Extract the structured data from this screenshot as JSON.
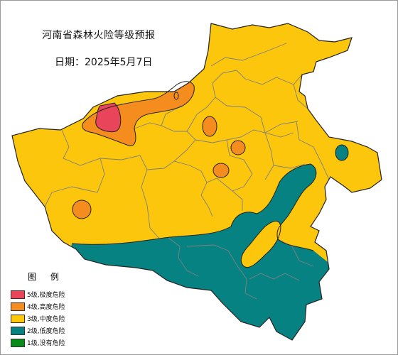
{
  "map": {
    "title": "河南省森林火险等级预报",
    "date_label": "日期：2025年5月7日"
  },
  "legend": {
    "title": "图 例",
    "items": [
      {
        "label": "5级,极度危险",
        "color": "#E8445A"
      },
      {
        "label": "4级,高度危险",
        "color": "#F58C1E"
      },
      {
        "label": "3级,中度危险",
        "color": "#FBC60C"
      },
      {
        "label": "2级,低度危险",
        "color": "#078282"
      },
      {
        "label": "1级,没有危险",
        "color": "#0B8A1C"
      }
    ]
  },
  "colors": {
    "level5": "#E8445A",
    "level4": "#F58C1E",
    "level3": "#FBC60C",
    "level2": "#078282",
    "boundary": "#7f7f7f",
    "outline": "#222222"
  }
}
